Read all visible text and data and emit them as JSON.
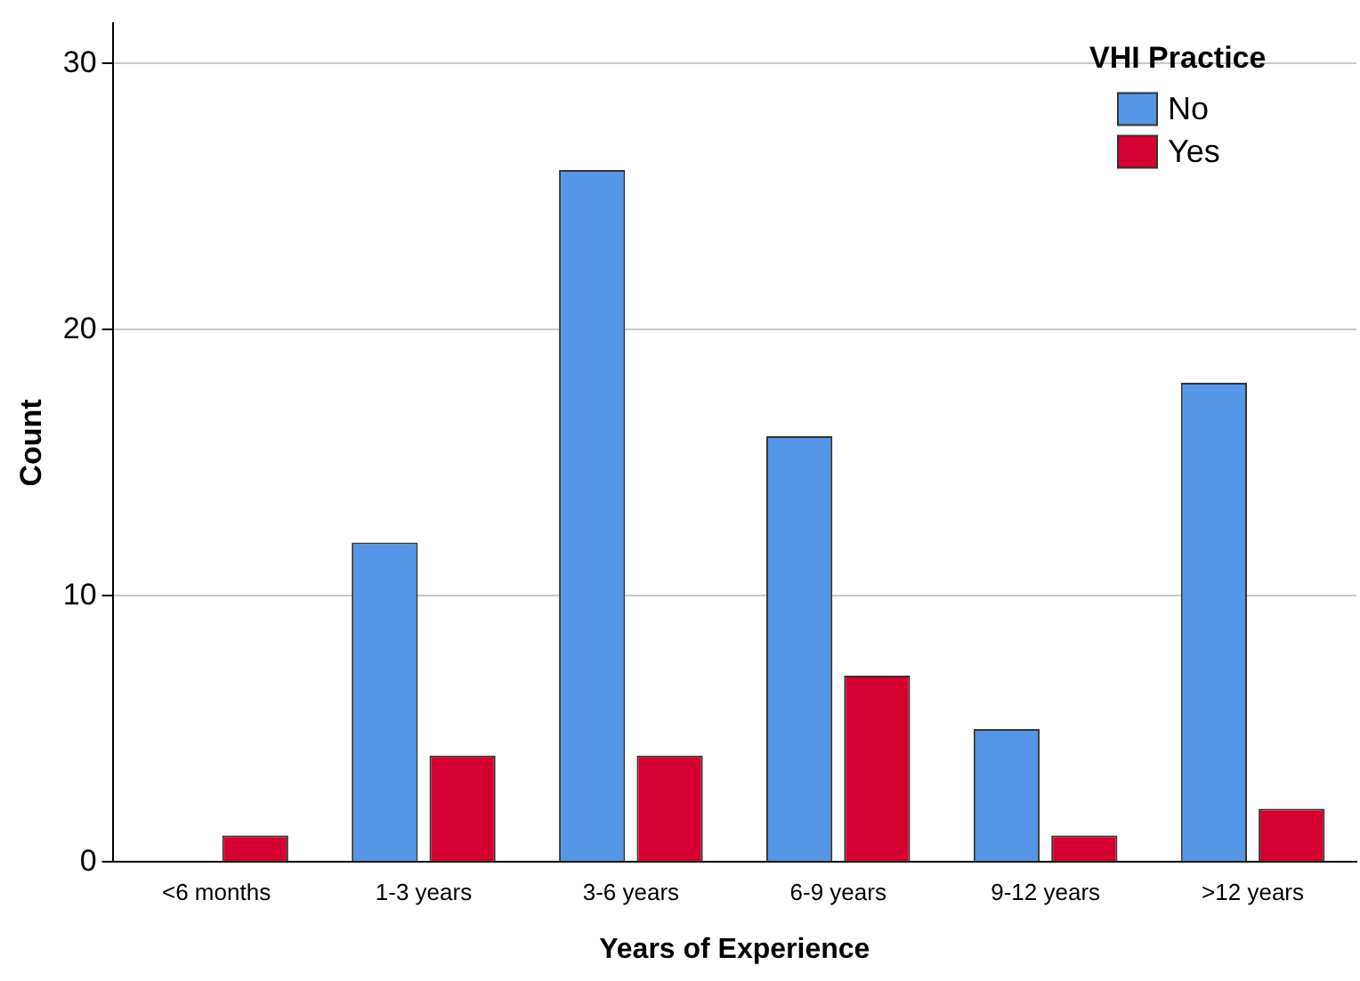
{
  "chart_data": {
    "type": "bar",
    "xlabel": "Years of Experience",
    "ylabel": "Count",
    "legend_title": "VHI Practice",
    "categories": [
      "<6 months",
      "1-3 years",
      "3-6 years",
      "6-9 years",
      "9-12 years",
      ">12 years"
    ],
    "series": [
      {
        "name": "No",
        "color": "#5596e6",
        "values": [
          0,
          12,
          26,
          16,
          5,
          18
        ]
      },
      {
        "name": "Yes",
        "color": "#d5002f",
        "values": [
          1,
          4,
          4,
          7,
          1,
          2
        ]
      }
    ],
    "ylim": [
      0,
      31.5
    ],
    "yticks": [
      0,
      10,
      20,
      30
    ],
    "grid": "y",
    "legend": "top right"
  }
}
